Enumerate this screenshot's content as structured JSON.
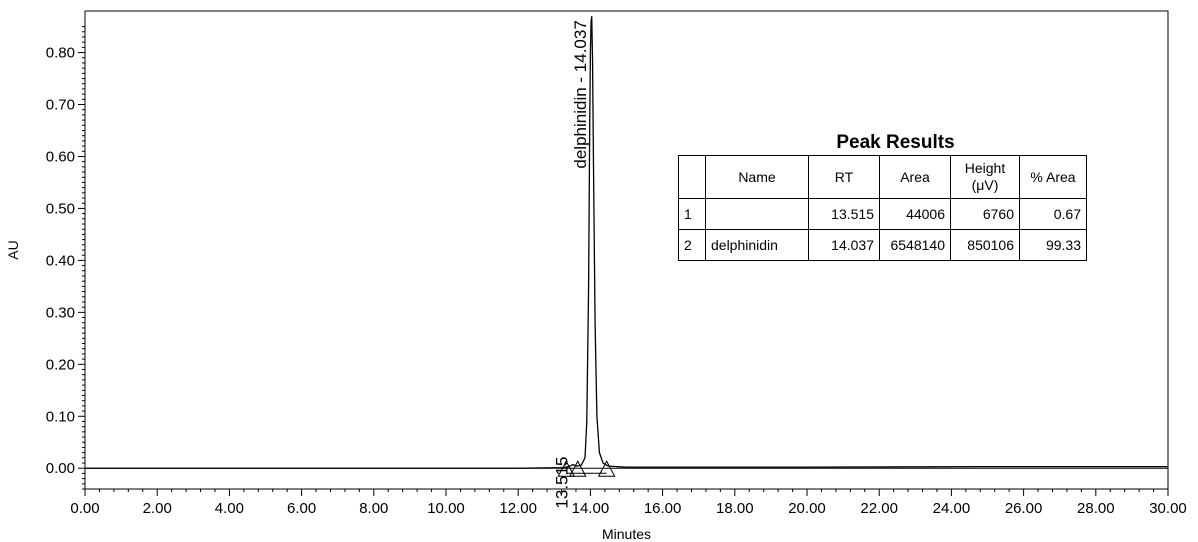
{
  "chart_data": {
    "type": "line",
    "xlabel": "Minutes",
    "ylabel": "AU",
    "xlim": [
      0,
      30
    ],
    "ylim": [
      -0.04,
      0.88
    ],
    "x_ticks": [
      "0.00",
      "2.00",
      "4.00",
      "6.00",
      "8.00",
      "10.00",
      "12.00",
      "14.00",
      "16.00",
      "18.00",
      "20.00",
      "22.00",
      "24.00",
      "26.00",
      "28.00",
      "30.00"
    ],
    "y_ticks": [
      "0.00",
      "0.10",
      "0.20",
      "0.30",
      "0.40",
      "0.50",
      "0.60",
      "0.70",
      "0.80"
    ],
    "series": [
      {
        "x": [
          0,
          12.0,
          13.2,
          13.4,
          13.515,
          13.62,
          13.75,
          13.85,
          13.9,
          13.95,
          13.98,
          14.0,
          14.02,
          14.037,
          14.06,
          14.09,
          14.13,
          14.18,
          14.25,
          14.35,
          14.5,
          15.0,
          20.0,
          25.0,
          30.0
        ],
        "y": [
          0.0,
          0.0,
          0.001,
          0.003,
          0.007,
          0.004,
          0.006,
          0.02,
          0.09,
          0.35,
          0.65,
          0.8,
          0.86,
          0.87,
          0.78,
          0.55,
          0.28,
          0.1,
          0.03,
          0.01,
          0.004,
          0.002,
          0.002,
          0.003,
          0.003
        ]
      }
    ],
    "peak_labels": [
      {
        "text": "13.515",
        "x": 13.515,
        "y": 0.007
      },
      {
        "text": "delphinidin - 14.037",
        "x": 14.037,
        "y": 0.87
      }
    ],
    "baseline_markers_x": [
      13.33,
      13.65,
      14.45
    ],
    "grid": false
  },
  "peak_table": {
    "title": "Peak Results",
    "headers": [
      "",
      "Name",
      "RT",
      "Area",
      "Height (μV)",
      "% Area"
    ],
    "header_height_line1": "Height",
    "header_height_line2": "(μV)",
    "rows": [
      {
        "idx": "1",
        "name": "",
        "rt": "13.515",
        "area": "44006",
        "height": "6760",
        "pct_area": "0.67"
      },
      {
        "idx": "2",
        "name": "delphinidin",
        "rt": "14.037",
        "area": "6548140",
        "height": "850106",
        "pct_area": "99.33"
      }
    ]
  }
}
